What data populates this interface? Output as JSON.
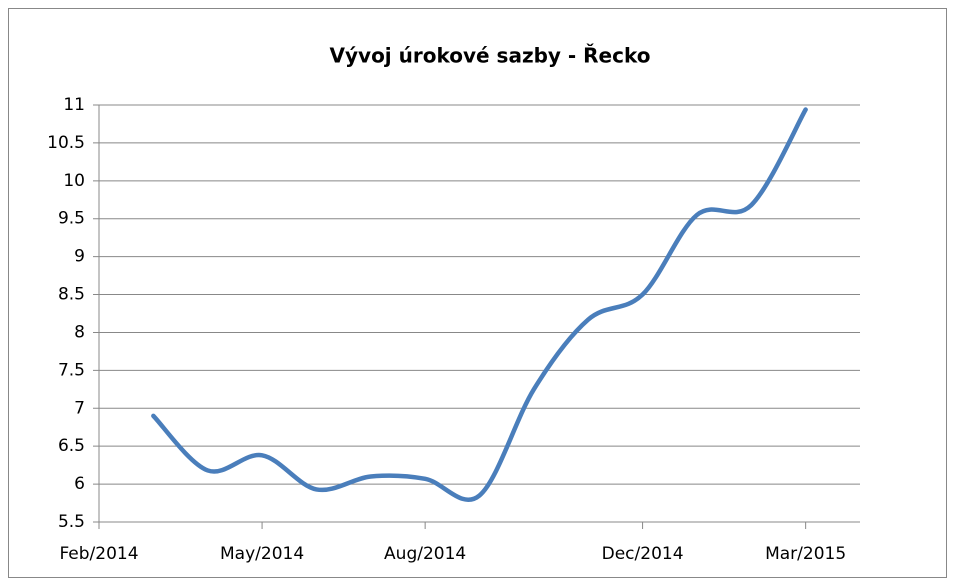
{
  "chart_data": {
    "type": "line",
    "title": "Vývoj úrokové sazby - Řecko",
    "x": [
      "2014-03",
      "2014-04",
      "2014-05",
      "2014-06",
      "2014-07",
      "2014-08",
      "2014-09",
      "2014-10",
      "2014-11",
      "2014-12",
      "2015-01",
      "2015-02",
      "2015-03"
    ],
    "series": [
      {
        "name": "Řecko",
        "color": "#4a7ebb",
        "values": [
          6.9,
          6.18,
          6.38,
          5.93,
          6.1,
          6.07,
          5.85,
          7.25,
          8.17,
          8.5,
          9.55,
          9.68,
          10.94
        ]
      }
    ],
    "xlim": [
      "2014-02",
      "2015-04"
    ],
    "xticks": [
      {
        "value": "2014-02",
        "label": "Feb/2014"
      },
      {
        "value": "2014-05",
        "label": "May/2014"
      },
      {
        "value": "2014-08",
        "label": "Aug/2014"
      },
      {
        "value": "2014-12",
        "label": "Dec/2014"
      },
      {
        "value": "2015-03",
        "label": "Mar/2015"
      }
    ],
    "ylim": [
      5.5,
      11
    ],
    "yticks": [
      5.5,
      6,
      6.5,
      7,
      7.5,
      8,
      8.5,
      9,
      9.5,
      10,
      10.5,
      11
    ],
    "grid": true
  }
}
